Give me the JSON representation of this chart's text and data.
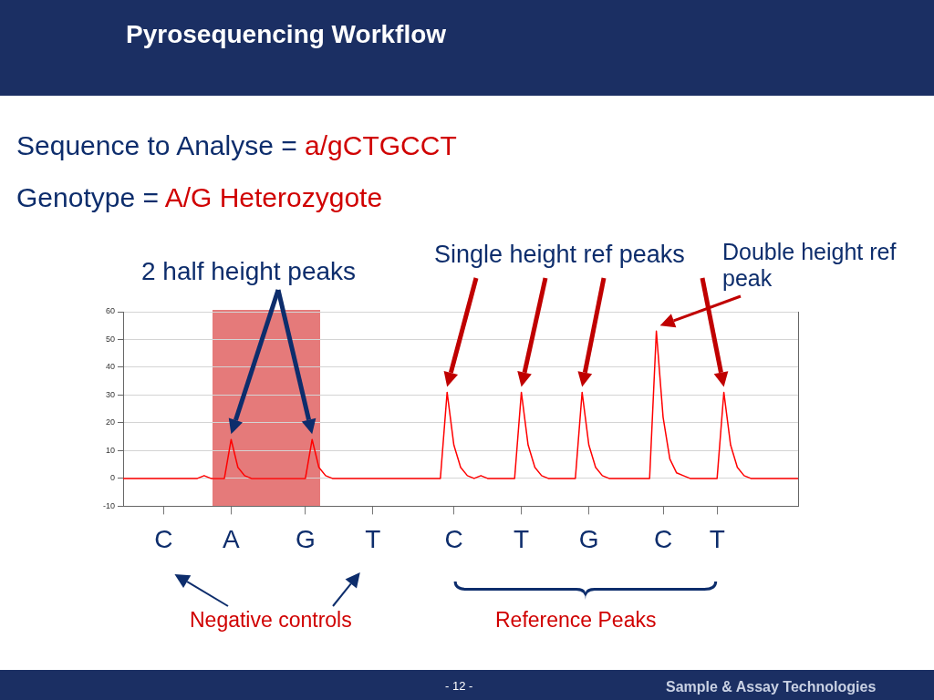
{
  "chart_data": {
    "type": "line",
    "title": "Pyrosequencing Workflow",
    "annotations": [
      "Sequence to Analyse = a/gCTGCCT",
      "Genotype = A/G Heterozygote",
      "2 half height peaks",
      "Single height ref peaks",
      "Double height ref peak",
      "Negative controls",
      "Reference Peaks",
      "- 12 -",
      "Sample & Assay Technologies"
    ],
    "categories": [
      null,
      null,
      null,
      null,
      null,
      null,
      "C",
      null,
      null,
      null,
      null,
      null,
      null,
      null,
      null,
      null,
      "A",
      null,
      null,
      null,
      null,
      null,
      null,
      null,
      null,
      null,
      null,
      "G",
      null,
      null,
      null,
      null,
      null,
      null,
      null,
      null,
      null,
      "T",
      null,
      null,
      null,
      null,
      null,
      null,
      null,
      null,
      null,
      null,
      null,
      "C",
      null,
      null,
      null,
      null,
      null,
      null,
      null,
      null,
      null,
      "T",
      null,
      null,
      null,
      null,
      null,
      null,
      null,
      null,
      null,
      "G",
      null,
      null,
      null,
      null,
      null,
      null,
      null,
      null,
      null,
      null,
      "C",
      null,
      null,
      null,
      null,
      null,
      null,
      null,
      "T",
      null,
      null,
      null,
      null,
      null,
      null,
      null,
      null,
      null,
      null,
      null,
      null
    ],
    "series": [
      {
        "color": "#ff0000",
        "values": [
          0,
          0,
          0,
          0,
          0,
          0,
          0,
          0,
          0,
          0,
          0,
          0,
          1,
          0,
          0,
          0,
          14,
          4,
          1,
          0,
          0,
          0,
          0,
          0,
          0,
          0,
          0,
          0,
          14,
          4,
          1,
          0,
          0,
          0,
          0,
          0,
          0,
          0,
          0,
          0,
          0,
          0,
          0,
          0,
          0,
          0,
          0,
          0,
          31,
          12,
          4,
          1,
          0,
          1,
          0,
          0,
          0,
          0,
          0,
          31,
          12,
          4,
          1,
          0,
          0,
          0,
          0,
          0,
          31,
          12,
          4,
          1,
          0,
          0,
          0,
          0,
          0,
          0,
          0,
          53,
          22,
          7,
          2,
          1,
          0,
          0,
          0,
          0,
          0,
          31,
          12,
          4,
          1,
          0,
          0,
          0,
          0,
          0,
          0,
          0,
          0
        ]
      }
    ],
    "ylim": [
      -10,
      60
    ],
    "yticks": [
      -10,
      0,
      10,
      20,
      30,
      40,
      50,
      60
    ],
    "grid": "y",
    "marker": "none",
    "line_style": "solid",
    "legend": false
  }
}
